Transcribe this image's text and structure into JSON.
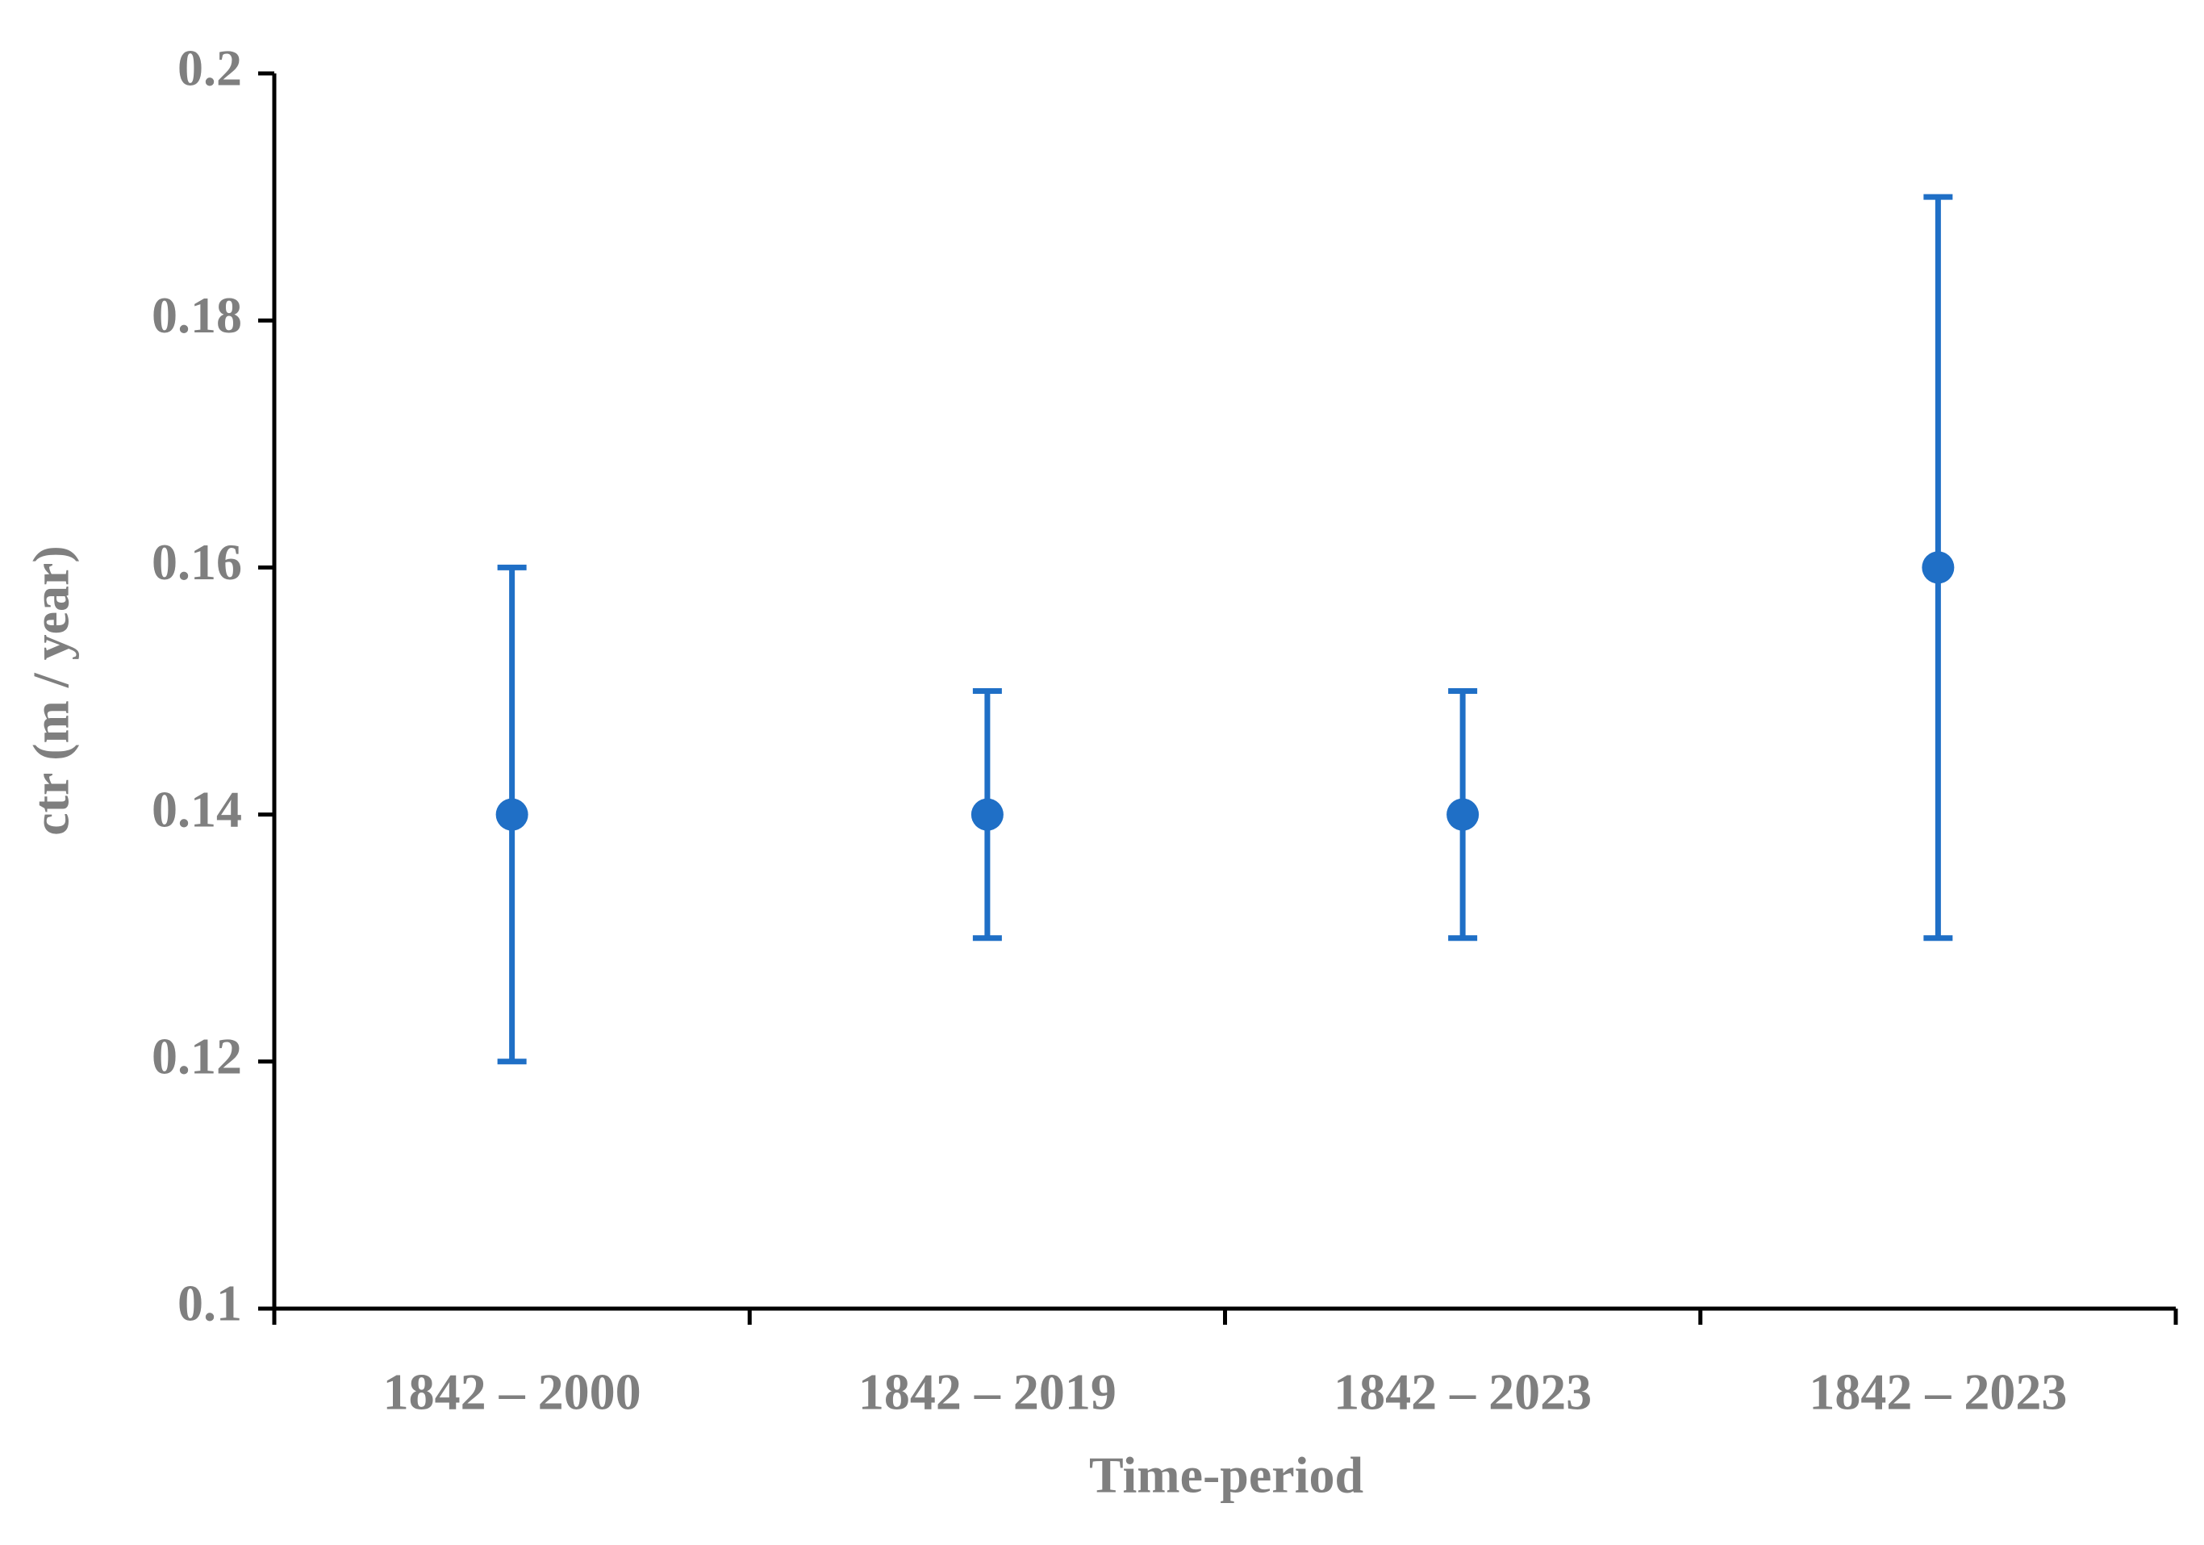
{
  "chart_data": {
    "type": "errorbar",
    "x_label": "Time-period",
    "y_label": "ctr (m / year)",
    "categories": [
      "1842 – 2000",
      "1842 – 2019",
      "1842 – 2023",
      "1842 – 2023"
    ],
    "values": [
      0.14,
      0.14,
      0.14,
      0.16
    ],
    "errors": [
      0.02,
      0.01,
      0.01,
      0.03
    ],
    "color": "#1f6fc6",
    "ylim": [
      0.1,
      0.2
    ],
    "yticks": [
      0.1,
      0.12,
      0.14,
      0.16,
      0.18,
      0.2
    ],
    "grid": false
  }
}
